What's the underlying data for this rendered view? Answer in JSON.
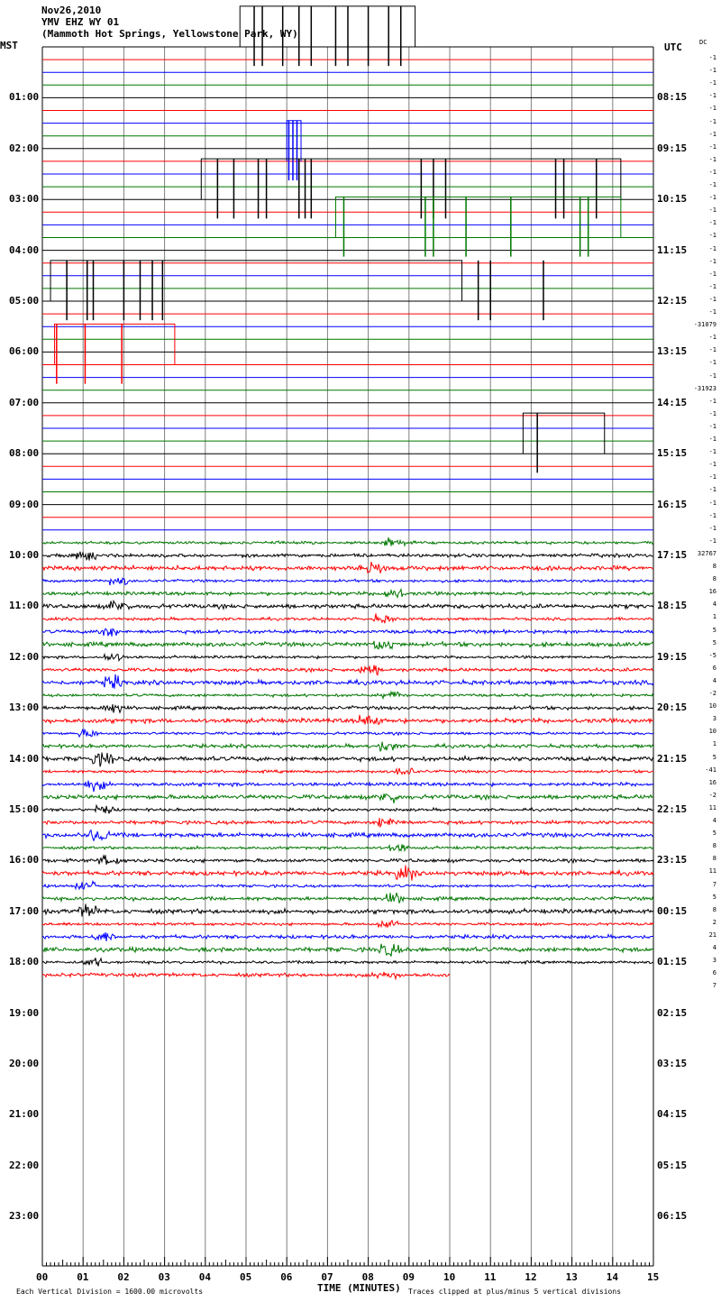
{
  "header": {
    "date": "Nov26,2010",
    "station": "YMV EHZ WY 01",
    "location": "(Mammoth Hot Springs, Yellowstone Park, WY)"
  },
  "axis": {
    "left_title": "MST",
    "right_title": "UTC",
    "dc_title": "DC",
    "xlabel": "TIME (MINUTES)",
    "footer_left": "Each Vertical Division = 1600.00 microvolts",
    "footer_right": "Traces clipped at plus/minus 5 vertical divisions"
  },
  "colors": {
    "black": "#000000",
    "red": "#ff0000",
    "blue": "#0000ff",
    "green": "#007700",
    "grid": "#808080"
  },
  "chart_data": {
    "type": "line",
    "title": "",
    "xlabel": "TIME (MINUTES)",
    "xlim": [
      0,
      15
    ],
    "x_ticks": [
      "00",
      "01",
      "02",
      "03",
      "04",
      "05",
      "06",
      "07",
      "08",
      "09",
      "10",
      "11",
      "12",
      "13",
      "14",
      "15"
    ],
    "left_hour_labels": [
      "01:00",
      "02:00",
      "03:00",
      "04:00",
      "05:00",
      "06:00",
      "07:00",
      "08:00",
      "09:00",
      "10:00",
      "11:00",
      "12:00",
      "13:00",
      "14:00",
      "15:00",
      "16:00",
      "17:00",
      "18:00",
      "19:00",
      "20:00",
      "21:00",
      "22:00",
      "23:00"
    ],
    "right_hour_labels": [
      "08:15",
      "09:15",
      "10:15",
      "11:15",
      "12:15",
      "13:15",
      "14:15",
      "15:15",
      "16:15",
      "17:15",
      "18:15",
      "19:15",
      "20:15",
      "21:15",
      "22:15",
      "23:15",
      "00:15",
      "01:15",
      "02:15",
      "03:15",
      "04:15",
      "05:15",
      "06:15"
    ],
    "trace_color_cycle": [
      "black",
      "red",
      "blue",
      "green"
    ],
    "dc_offsets": [
      "-1",
      "-1",
      "-1",
      "-1",
      "-1",
      "-1",
      "-1",
      "-1",
      "-1",
      "-1",
      "-1",
      "-1",
      "-1",
      "-1",
      "-1",
      "-1",
      "-1",
      "-1",
      "-1",
      "-1",
      "-1",
      "-31079",
      "-1",
      "-1",
      "-1",
      "-1",
      "-31923",
      "-1",
      "-1",
      "-1",
      "-1",
      "-1",
      "-1",
      "-1",
      "-1",
      "-1",
      "-1",
      "-1",
      "-1",
      "32767",
      "8",
      "8",
      "16",
      "4",
      "1",
      "5",
      "5",
      "-5",
      "6",
      "4",
      "-2",
      "10",
      "3",
      "10",
      "1",
      "5",
      "-41",
      "16",
      "-2",
      "11",
      "4",
      "5",
      "8",
      "8",
      "11",
      "7",
      "5",
      "8",
      "2",
      "21",
      "4",
      "3",
      "6",
      "7"
    ],
    "trace_count": 74,
    "units_per_division_microvolts": 1600.0,
    "clip_divisions": 5
  }
}
